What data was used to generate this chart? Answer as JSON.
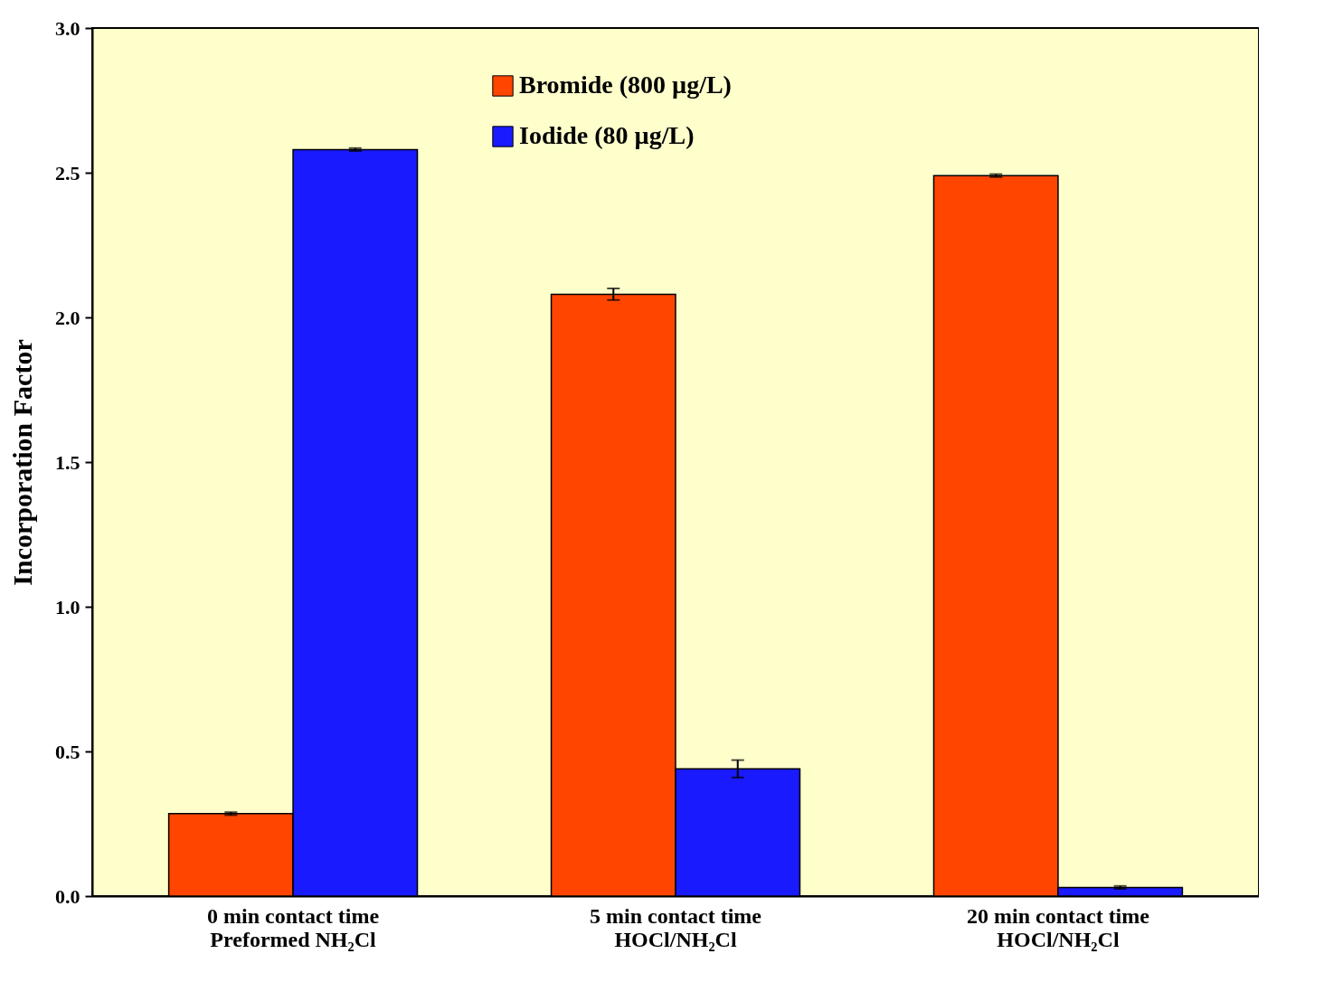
{
  "chart_data": {
    "type": "bar",
    "ylabel": "Incorporation Factor",
    "categories": [
      "0 min contact time\nPreformed NH₂Cl",
      "5 min contact time\nHOCl/NH₂Cl",
      "20 min contact time\nHOCl/NH₂Cl"
    ],
    "series": [
      {
        "name": "Bromide (800 µg/L)",
        "color": "#ff4500",
        "values": [
          0.285,
          2.08,
          2.49
        ],
        "errors": [
          0.005,
          0.02,
          0.005
        ]
      },
      {
        "name": "Iodide (80 µg/L)",
        "color": "#1a1aff",
        "values": [
          2.58,
          0.44,
          0.03
        ],
        "errors": [
          0.005,
          0.03,
          0.005
        ]
      }
    ],
    "ylim": [
      0,
      3.0
    ],
    "yticks": [
      {
        "value": 0,
        "label": "0.0"
      },
      {
        "value": 0.5,
        "label": "0.5"
      },
      {
        "value": 1,
        "label": "1.0"
      },
      {
        "value": 1.5,
        "label": "1.5"
      },
      {
        "value": 2,
        "label": "2.0"
      },
      {
        "value": 2.5,
        "label": "2.5"
      },
      {
        "value": 3,
        "label": "3.0"
      }
    ],
    "grid": false,
    "legend": "top"
  }
}
